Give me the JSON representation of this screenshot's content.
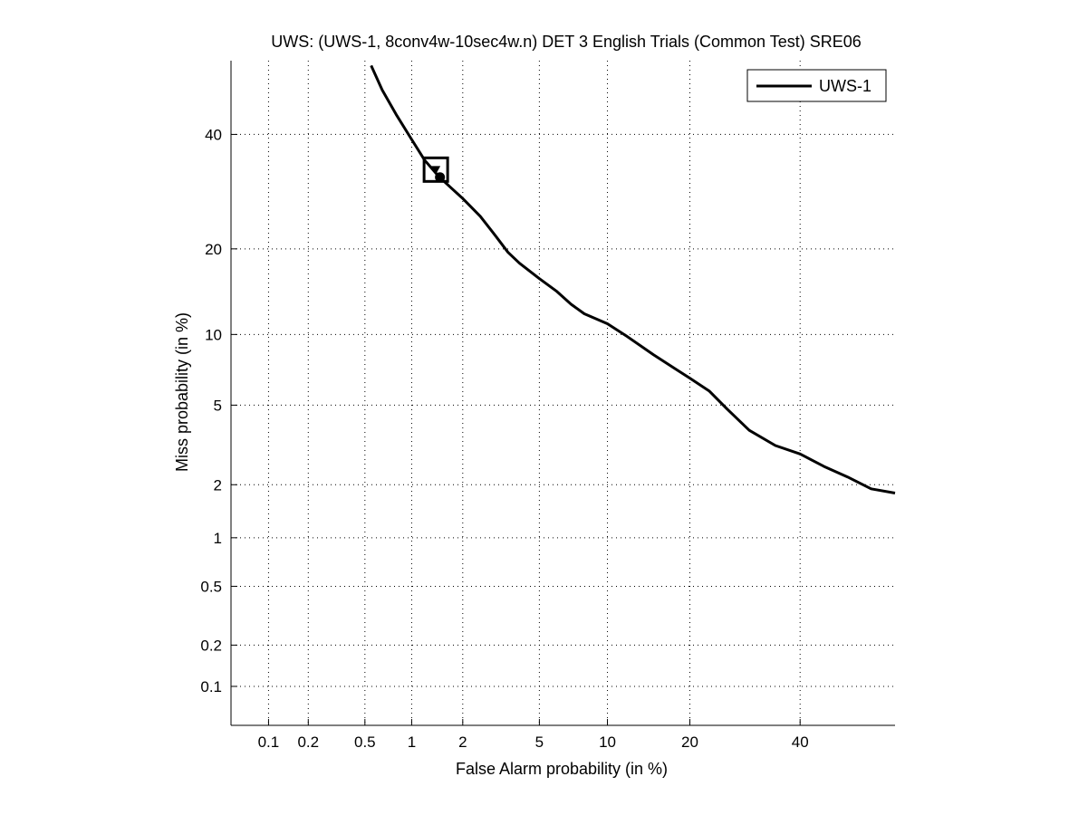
{
  "chart_data": {
    "type": "line",
    "title": "UWS: (UWS-1, 8conv4w-10sec4w.n) DET 3 English Trials (Common Test) SRE06",
    "xlabel": "False Alarm probability (in %)",
    "ylabel": "Miss probability (in %)",
    "x_scale": "probit",
    "y_scale": "probit",
    "xlim": [
      0.05,
      60
    ],
    "ylim": [
      0.05,
      55
    ],
    "x_ticks": [
      0.1,
      0.2,
      0.5,
      1,
      2,
      5,
      10,
      20,
      40
    ],
    "x_tick_labels": [
      "0.1",
      "0.2",
      "0.5",
      "1",
      "2",
      "5",
      "10",
      "20",
      "40"
    ],
    "y_ticks": [
      0.1,
      0.2,
      0.5,
      1,
      2,
      5,
      10,
      20,
      40
    ],
    "y_tick_labels": [
      "0.1",
      "0.2",
      "0.5",
      "1",
      "2",
      "5",
      "10",
      "20",
      "40"
    ],
    "grid": true,
    "legend_position": "top-right",
    "series": [
      {
        "name": "UWS-1",
        "color": "#000000",
        "x": [
          0.55,
          0.65,
          0.8,
          1.0,
          1.2,
          1.45,
          1.7,
          2.0,
          2.5,
          3.0,
          3.5,
          4.0,
          5.0,
          6.0,
          7.0,
          8.0,
          10.0,
          12.0,
          15.0,
          18.0,
          20.0,
          23.0,
          26.0,
          30.0,
          35.0,
          40.0,
          45.0,
          50.0,
          55.0,
          60.0
        ],
        "y": [
          54.0,
          49.0,
          44.0,
          39.0,
          35.0,
          32.0,
          30.0,
          28.0,
          25.0,
          22.0,
          19.5,
          18.0,
          16.0,
          14.5,
          13.0,
          12.0,
          11.0,
          9.8,
          8.3,
          7.2,
          6.6,
          5.8,
          4.8,
          3.8,
          3.2,
          2.9,
          2.5,
          2.2,
          1.9,
          1.8
        ]
      }
    ],
    "markers": [
      {
        "shape": "square",
        "x": 1.4,
        "y": 33.2
      },
      {
        "shape": "circle",
        "x": 1.48,
        "y": 31.8
      }
    ]
  }
}
